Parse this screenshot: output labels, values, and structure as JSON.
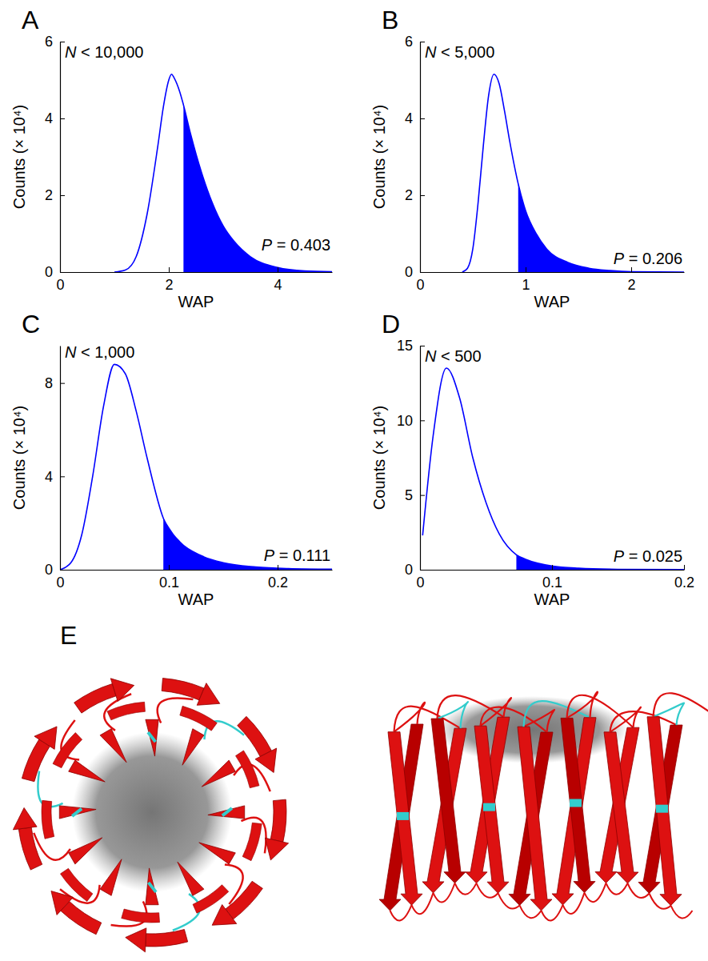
{
  "chart_data": [
    {
      "type": "line",
      "panel": "A",
      "x_label": "WAP",
      "y_label": "Counts (× 10⁴)",
      "annotations": [
        "N < 10,000",
        "P = 0.403"
      ],
      "x": [
        1.0,
        1.2,
        1.4,
        1.6,
        1.8,
        1.9,
        2.0,
        2.05,
        2.1,
        2.2,
        2.27,
        2.4,
        2.6,
        2.8,
        3.0,
        3.2,
        3.5,
        4.0,
        4.5,
        5.0
      ],
      "values": [
        0,
        0.05,
        0.4,
        1.5,
        3.3,
        4.3,
        5.0,
        5.15,
        5.05,
        4.7,
        4.35,
        3.6,
        2.6,
        1.8,
        1.2,
        0.8,
        0.4,
        0.12,
        0.03,
        0.01
      ],
      "threshold": 2.27,
      "color": "#0000ff",
      "xlim": [
        0,
        5
      ],
      "xticks": [
        0,
        2,
        4
      ],
      "ylim": [
        0,
        6
      ],
      "yticks": [
        0,
        2,
        4,
        6
      ]
    },
    {
      "type": "line",
      "panel": "B",
      "x_label": "WAP",
      "y_label": "Counts (× 10⁴)",
      "annotations": [
        "N < 5,000",
        "P = 0.206"
      ],
      "x": [
        0.4,
        0.45,
        0.5,
        0.55,
        0.6,
        0.65,
        0.7,
        0.75,
        0.8,
        0.85,
        0.93,
        1.0,
        1.1,
        1.2,
        1.4,
        1.6,
        1.8,
        2.0,
        2.5
      ],
      "values": [
        0,
        0.1,
        0.6,
        1.8,
        3.3,
        4.6,
        5.15,
        4.9,
        4.2,
        3.4,
        2.3,
        1.6,
        1.0,
        0.6,
        0.25,
        0.1,
        0.04,
        0.01,
        0
      ],
      "threshold": 0.93,
      "color": "#0000ff",
      "xlim": [
        0,
        2.5
      ],
      "xticks": [
        0,
        1,
        2
      ],
      "ylim": [
        0,
        6
      ],
      "yticks": [
        0,
        2,
        4,
        6
      ]
    },
    {
      "type": "line",
      "panel": "C",
      "x_label": "WAP",
      "y_label": "Counts (× 10⁴)",
      "annotations": [
        "N < 1,000",
        "P = 0.111"
      ],
      "x": [
        0,
        0.01,
        0.02,
        0.03,
        0.04,
        0.05,
        0.06,
        0.07,
        0.08,
        0.095,
        0.11,
        0.13,
        0.15,
        0.18,
        0.21,
        0.25
      ],
      "values": [
        0,
        0.3,
        1.5,
        4.0,
        7.0,
        8.8,
        8.4,
        6.8,
        4.8,
        2.2,
        1.2,
        0.6,
        0.3,
        0.12,
        0.05,
        0.02
      ],
      "threshold": 0.095,
      "color": "#0000ff",
      "xlim": [
        0,
        0.25
      ],
      "xticks": [
        0,
        0.1,
        0.2
      ],
      "ylim": [
        0,
        9.6
      ],
      "yticks": [
        0,
        4,
        8
      ]
    },
    {
      "type": "line",
      "panel": "D",
      "x_label": "WAP",
      "y_label": "Counts (× 10⁴)",
      "annotations": [
        "N < 500",
        "P = 0.025"
      ],
      "x": [
        0.002,
        0.01,
        0.02,
        0.03,
        0.04,
        0.05,
        0.06,
        0.073,
        0.08,
        0.1,
        0.12,
        0.15,
        0.2
      ],
      "values": [
        2.3,
        9,
        13.5,
        11.5,
        7.5,
        4.5,
        2.4,
        1.0,
        0.7,
        0.25,
        0.1,
        0.03,
        0.01
      ],
      "threshold": 0.073,
      "color": "#0000ff",
      "xlim": [
        0,
        0.2
      ],
      "xticks": [
        0,
        0.1,
        0.2
      ],
      "ylim": [
        0,
        15
      ],
      "yticks": [
        0,
        5,
        10,
        15
      ]
    }
  ],
  "structure_panel": {
    "panel": "E"
  }
}
